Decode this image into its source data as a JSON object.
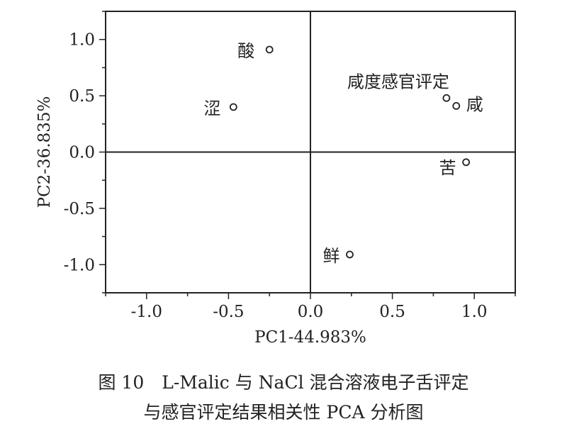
{
  "chart_data": {
    "type": "scatter",
    "xlabel": "PC1-44.983%",
    "ylabel": "PC2-36.835%",
    "xlim": [
      -1.25,
      1.25
    ],
    "ylim": [
      -1.25,
      1.25
    ],
    "xticks": [
      "-1.0",
      "-0.5",
      "0.0",
      "0.5",
      "1.0"
    ],
    "yticks": [
      "1.0",
      "0.5",
      "0.0",
      "-0.5",
      "-1.0"
    ],
    "grid": false,
    "zero_lines": true,
    "marker": "open-circle",
    "points": [
      {
        "label": "酸",
        "x": -0.25,
        "y": 0.91
      },
      {
        "label": "涩",
        "x": -0.47,
        "y": 0.4
      },
      {
        "label": "咸度感官评定",
        "x": 0.83,
        "y": 0.48
      },
      {
        "label": "咸",
        "x": 0.89,
        "y": 0.41
      },
      {
        "label": "苦",
        "x": 0.95,
        "y": -0.09
      },
      {
        "label": "鲜",
        "x": 0.24,
        "y": -0.91
      }
    ]
  },
  "caption": {
    "line1": "图 10　L-Malic 与 NaCl 混合溶液电子舌评定",
    "line2": "与感官评定结果相关性 PCA 分析图"
  }
}
